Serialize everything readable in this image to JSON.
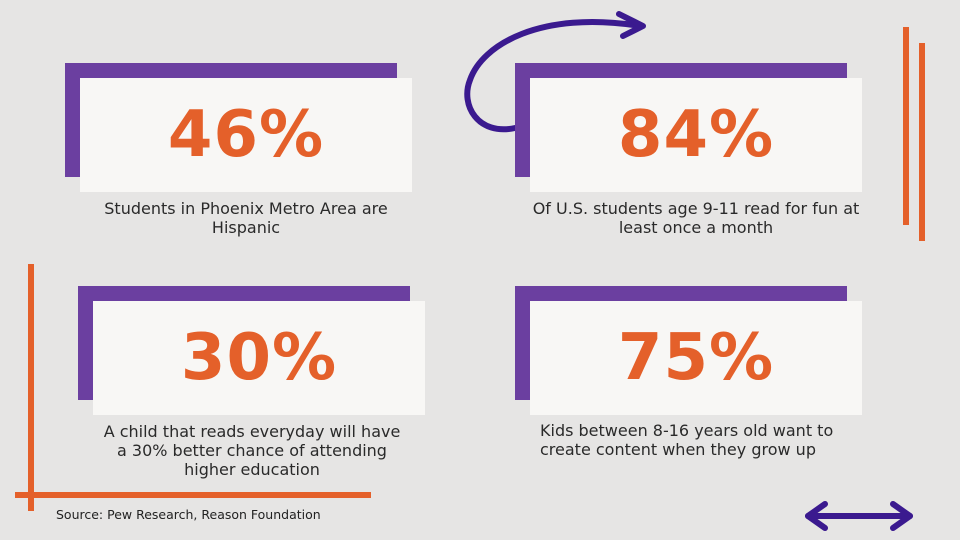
{
  "stats": [
    {
      "value": "46%",
      "caption": "Students in Phoenix Metro Area are Hispanic"
    },
    {
      "value": "84%",
      "caption": "Of U.S. students age 9-11 read for fun at least once a month"
    },
    {
      "value": "30%",
      "caption": "A child that reads everyday will have a 30% better chance of attending higher education"
    },
    {
      "value": "75%",
      "caption": "Kids between 8-16 years old want to create content when they grow up"
    }
  ],
  "source": "Source: Pew Research, Reason Foundation",
  "colors": {
    "background": "#e6e5e4",
    "accent_orange": "#e4602a",
    "accent_purple": "#6b3fa0",
    "arrow_navy": "#3b1a8f",
    "card": "#f8f7f5"
  },
  "icons": [
    "curved-arrow-icon",
    "double-arrow-icon"
  ]
}
